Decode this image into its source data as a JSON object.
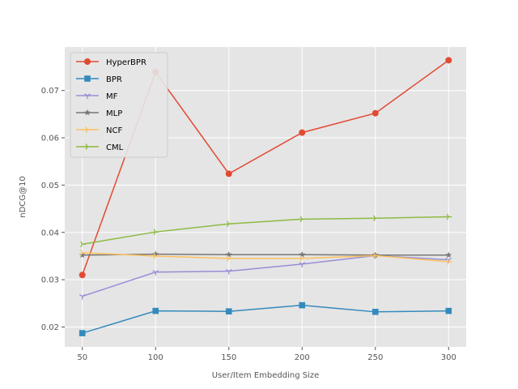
{
  "chart_data": {
    "type": "line",
    "title": "",
    "xlabel": "User/Item Embedding Size",
    "ylabel": "nDCG@10",
    "x": [
      50,
      100,
      150,
      200,
      250,
      300
    ],
    "xlim": [
      38,
      312
    ],
    "ylim": [
      0.0158,
      0.0792
    ],
    "xticks": [
      50,
      100,
      150,
      200,
      250,
      300
    ],
    "yticks": [
      0.02,
      0.03,
      0.04,
      0.05,
      0.06,
      0.07
    ],
    "ytick_labels": [
      "0.02",
      "0.03",
      "0.04",
      "0.05",
      "0.06",
      "0.07"
    ],
    "grid": true,
    "legend_position": "top-left",
    "series": [
      {
        "name": "HyperBPR",
        "color": "#E24A33",
        "marker": "circle",
        "values": [
          0.031,
          0.0739,
          0.0524,
          0.0611,
          0.0652,
          0.0764
        ]
      },
      {
        "name": "BPR",
        "color": "#348ABD",
        "marker": "square",
        "values": [
          0.0187,
          0.0234,
          0.0233,
          0.0246,
          0.0232,
          0.0234
        ]
      },
      {
        "name": "MF",
        "color": "#988ED5",
        "marker": "tri-down",
        "values": [
          0.0265,
          0.0316,
          0.0318,
          0.0333,
          0.0351,
          0.0342
        ]
      },
      {
        "name": "MLP",
        "color": "#777777",
        "marker": "star",
        "values": [
          0.0352,
          0.0354,
          0.0353,
          0.0353,
          0.0352,
          0.0352
        ]
      },
      {
        "name": "NCF",
        "color": "#FBC15E",
        "marker": "tri-right",
        "values": [
          0.0357,
          0.035,
          0.0345,
          0.0345,
          0.0351,
          0.0338
        ]
      },
      {
        "name": "CML",
        "color": "#8EBA42",
        "marker": "tri-right",
        "values": [
          0.0375,
          0.0401,
          0.0418,
          0.0428,
          0.043,
          0.0433
        ]
      }
    ]
  }
}
